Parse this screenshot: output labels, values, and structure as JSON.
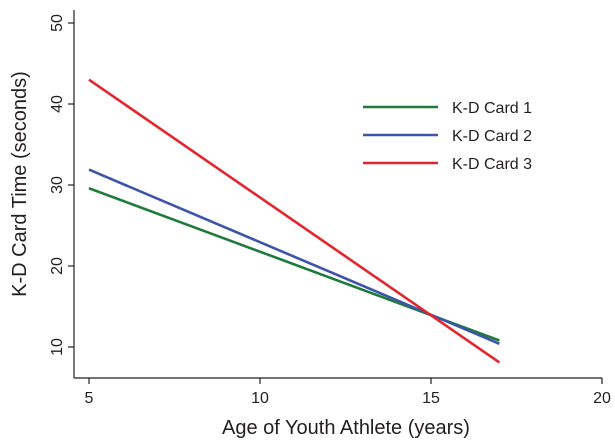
{
  "chart_data": {
    "type": "line",
    "title": "",
    "xlabel": "Age of Youth Athlete (years)",
    "ylabel": "K-D Card Time (seconds)",
    "xlim": [
      5,
      20
    ],
    "ylim": [
      10,
      50
    ],
    "x_ticks": [
      5,
      10,
      15,
      20
    ],
    "y_ticks": [
      10,
      20,
      30,
      40,
      50
    ],
    "grid": false,
    "legend_position": "top-right",
    "series": [
      {
        "name": "K-D Card 1",
        "color": "#1e7b3c",
        "x": [
          5,
          17
        ],
        "y": [
          29.6,
          10.8
        ]
      },
      {
        "name": "K-D Card 2",
        "color": "#3d55a8",
        "x": [
          5,
          17
        ],
        "y": [
          31.9,
          10.4
        ]
      },
      {
        "name": "K-D Card 3",
        "color": "#e3262e",
        "x": [
          5,
          17
        ],
        "y": [
          43.0,
          8.1
        ]
      }
    ]
  }
}
